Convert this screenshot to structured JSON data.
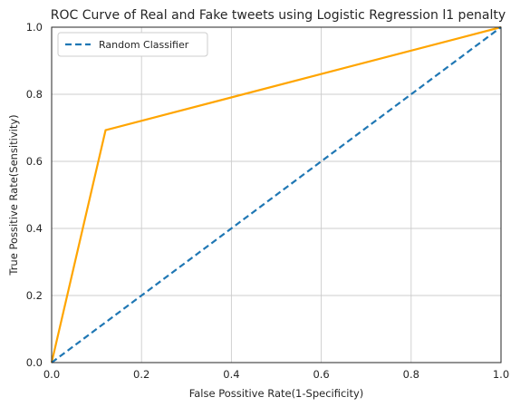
{
  "chart_data": {
    "type": "line",
    "title": "ROC Curve of Real and Fake tweets using Logistic Regression l1 penalty",
    "xlabel": "False Possitive Rate(1-Specificity)",
    "ylabel": "True Possitive Rate(Sensitivity)",
    "xlim": [
      0,
      1
    ],
    "ylim": [
      0,
      1
    ],
    "xticks": [
      "0.0",
      "0.2",
      "0.4",
      "0.6",
      "0.8",
      "1.0"
    ],
    "yticks": [
      "0.0",
      "0.2",
      "0.4",
      "0.6",
      "0.8",
      "1.0"
    ],
    "grid": true,
    "legend": {
      "position": "top-left",
      "entries": [
        "Random Classifier"
      ]
    },
    "series": [
      {
        "color": "#ffa500",
        "style": "solid",
        "x": [
          0.0,
          0.12,
          1.0
        ],
        "y": [
          0.0,
          0.693,
          1.0
        ]
      },
      {
        "name": "Random Classifier",
        "color": "#1f77b4",
        "style": "dashed",
        "x": [
          0.0,
          1.0
        ],
        "y": [
          0.0,
          1.0
        ]
      }
    ]
  }
}
